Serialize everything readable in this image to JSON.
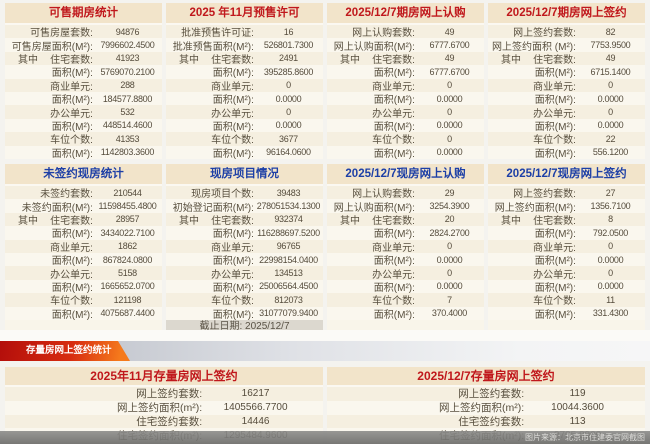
{
  "top_panels": [
    {
      "title": "可售期房统计",
      "rows": [
        {
          "prefix": "",
          "label": "可售房屋套数:",
          "value": "94876"
        },
        {
          "prefix": "",
          "label": "可售房屋面积(M²):",
          "value": "7996602.4500"
        },
        {
          "prefix": "其中",
          "label": "住宅套数:",
          "value": "41923"
        },
        {
          "prefix": "",
          "label": "面积(M²):",
          "value": "5769070.2100"
        },
        {
          "prefix": "",
          "label": "商业单元:",
          "value": "288"
        },
        {
          "prefix": "",
          "label": "面积(M²):",
          "value": "184577.8800"
        },
        {
          "prefix": "",
          "label": "办公单元:",
          "value": "532"
        },
        {
          "prefix": "",
          "label": "面积(M²):",
          "value": "448514.4600"
        },
        {
          "prefix": "",
          "label": "车位个数:",
          "value": "41353"
        },
        {
          "prefix": "",
          "label": "面积(M²):",
          "value": "1142803.3600"
        }
      ]
    },
    {
      "title": "2025 年11月预售许可",
      "rows": [
        {
          "prefix": "",
          "label": "批准预售许可证:",
          "value": "16"
        },
        {
          "prefix": "",
          "label": "批准预售面积(M²):",
          "value": "526801.7300"
        },
        {
          "prefix": "其中",
          "label": "住宅套数:",
          "value": "2491"
        },
        {
          "prefix": "",
          "label": "面积(M²):",
          "value": "395285.8600"
        },
        {
          "prefix": "",
          "label": "商业单元:",
          "value": "0"
        },
        {
          "prefix": "",
          "label": "面积(M²):",
          "value": "0.0000"
        },
        {
          "prefix": "",
          "label": "办公单元:",
          "value": "0"
        },
        {
          "prefix": "",
          "label": "面积(M²):",
          "value": "0.0000"
        },
        {
          "prefix": "",
          "label": "车位个数:",
          "value": "3677"
        },
        {
          "prefix": "",
          "label": "面积(M²):",
          "value": "96164.0600"
        }
      ]
    },
    {
      "title": "2025/12/7期房网上认购",
      "rows": [
        {
          "prefix": "",
          "label": "网上认购套数:",
          "value": "49"
        },
        {
          "prefix": "",
          "label": "网上认购面积(M²):",
          "value": "6777.6700"
        },
        {
          "prefix": "其中",
          "label": "住宅套数:",
          "value": "49"
        },
        {
          "prefix": "",
          "label": "面积(M²):",
          "value": "6777.6700"
        },
        {
          "prefix": "",
          "label": "商业单元:",
          "value": "0"
        },
        {
          "prefix": "",
          "label": "面积(M²):",
          "value": "0.0000"
        },
        {
          "prefix": "",
          "label": "办公单元:",
          "value": "0"
        },
        {
          "prefix": "",
          "label": "面积(M²):",
          "value": "0.0000"
        },
        {
          "prefix": "",
          "label": "车位个数:",
          "value": "0"
        },
        {
          "prefix": "",
          "label": "面积(M²):",
          "value": "0.0000"
        }
      ]
    },
    {
      "title": "2025/12/7期房网上签约",
      "rows": [
        {
          "prefix": "",
          "label": "网上签约套数:",
          "value": "82"
        },
        {
          "prefix": "",
          "label": "网上签约面积 (M²):",
          "value": "7753.9500"
        },
        {
          "prefix": "其中",
          "label": "住宅套数:",
          "value": "49"
        },
        {
          "prefix": "",
          "label": "面积(M²):",
          "value": "6715.1400"
        },
        {
          "prefix": "",
          "label": "商业单元:",
          "value": "0"
        },
        {
          "prefix": "",
          "label": "面积(M²):",
          "value": "0.0000"
        },
        {
          "prefix": "",
          "label": "办公单元:",
          "value": "0"
        },
        {
          "prefix": "",
          "label": "面积(M²):",
          "value": "0.0000"
        },
        {
          "prefix": "",
          "label": "车位个数:",
          "value": "22"
        },
        {
          "prefix": "",
          "label": "面积(M²):",
          "value": "556.1200"
        }
      ]
    },
    {
      "title": "未签约现房统计",
      "rows": [
        {
          "prefix": "",
          "label": "未签约套数:",
          "value": "210544"
        },
        {
          "prefix": "",
          "label": "未签约面积(M²):",
          "value": "11598455.4800"
        },
        {
          "prefix": "其中",
          "label": "住宅套数:",
          "value": "28957"
        },
        {
          "prefix": "",
          "label": "面积(M²):",
          "value": "3434022.7100"
        },
        {
          "prefix": "",
          "label": "商业单元:",
          "value": "1862"
        },
        {
          "prefix": "",
          "label": "面积(M²):",
          "value": "867824.0800"
        },
        {
          "prefix": "",
          "label": "办公单元:",
          "value": "5158"
        },
        {
          "prefix": "",
          "label": "面积(M²):",
          "value": "1665652.0700"
        },
        {
          "prefix": "",
          "label": "车位个数:",
          "value": "121198"
        },
        {
          "prefix": "",
          "label": "面积(M²):",
          "value": "4075687.4400"
        }
      ]
    },
    {
      "title": "现房项目情况",
      "footer": "截止日期: 2025/12/7",
      "rows": [
        {
          "prefix": "",
          "label": "现房项目个数:",
          "value": "39483"
        },
        {
          "prefix": "",
          "label": "初始登记面积(M²):",
          "value": "278051534.1300"
        },
        {
          "prefix": "其中",
          "label": "住宅套数:",
          "value": "932374"
        },
        {
          "prefix": "",
          "label": "面积(M²):",
          "value": "116288697.5200"
        },
        {
          "prefix": "",
          "label": "商业单元:",
          "value": "96765"
        },
        {
          "prefix": "",
          "label": "面积(M²):",
          "value": "22998154.0400"
        },
        {
          "prefix": "",
          "label": "办公单元:",
          "value": "134513"
        },
        {
          "prefix": "",
          "label": "面积(M²):",
          "value": "25006564.4500"
        },
        {
          "prefix": "",
          "label": "车位个数:",
          "value": "812073"
        },
        {
          "prefix": "",
          "label": "面积(M²):",
          "value": "31077079.9400"
        }
      ]
    },
    {
      "title": "2025/12/7现房网上认购",
      "rows": [
        {
          "prefix": "",
          "label": "网上认购套数:",
          "value": "29"
        },
        {
          "prefix": "",
          "label": "网上认购面积(M²):",
          "value": "3254.3900"
        },
        {
          "prefix": "其中",
          "label": "住宅套数:",
          "value": "20"
        },
        {
          "prefix": "",
          "label": "面积(M²):",
          "value": "2824.2700"
        },
        {
          "prefix": "",
          "label": "商业单元:",
          "value": "0"
        },
        {
          "prefix": "",
          "label": "面积(M²):",
          "value": "0.0000"
        },
        {
          "prefix": "",
          "label": "办公单元:",
          "value": "0"
        },
        {
          "prefix": "",
          "label": "面积(M²):",
          "value": "0.0000"
        },
        {
          "prefix": "",
          "label": "车位个数:",
          "value": "7"
        },
        {
          "prefix": "",
          "label": "面积(M²):",
          "value": "370.4000"
        }
      ]
    },
    {
      "title": "2025/12/7现房网上签约",
      "rows": [
        {
          "prefix": "",
          "label": "网上签约套数:",
          "value": "27"
        },
        {
          "prefix": "",
          "label": "网上签约面积(M²):",
          "value": "1356.7100"
        },
        {
          "prefix": "其中",
          "label": "住宅套数:",
          "value": "8"
        },
        {
          "prefix": "",
          "label": "面积(M²):",
          "value": "792.0500"
        },
        {
          "prefix": "",
          "label": "商业单元:",
          "value": "0"
        },
        {
          "prefix": "",
          "label": "面积(M²):",
          "value": "0.0000"
        },
        {
          "prefix": "",
          "label": "办公单元:",
          "value": "0"
        },
        {
          "prefix": "",
          "label": "面积(M²):",
          "value": "0.0000"
        },
        {
          "prefix": "",
          "label": "车位个数:",
          "value": "11"
        },
        {
          "prefix": "",
          "label": "面积(M²):",
          "value": "331.4300"
        }
      ]
    }
  ],
  "bottom_section": {
    "banner": "存量房网上签约统计",
    "panels": [
      {
        "title": "2025年11月存量房网上签约",
        "rows": [
          {
            "prefix": "",
            "label": "网上签约套数:",
            "value": "16217"
          },
          {
            "prefix": "",
            "label": "网上签约面积(m²):",
            "value": "1405566.7700"
          },
          {
            "prefix": "",
            "label": "住宅签约套数:",
            "value": "14446"
          },
          {
            "prefix": "",
            "label": "住宅签约面积(m²):",
            "value": "1295484.9600"
          }
        ]
      },
      {
        "title": "2025/12/7存量房网上签约",
        "rows": [
          {
            "prefix": "",
            "label": "网上签约套数:",
            "value": "119"
          },
          {
            "prefix": "",
            "label": "网上签约面积(m²):",
            "value": "10044.3600"
          },
          {
            "prefix": "",
            "label": "住宅签约套数:",
            "value": "113"
          },
          {
            "prefix": "",
            "label": "住宅签约面积(m²):",
            "value": "9705.8900"
          }
        ]
      }
    ]
  },
  "watermark": "图片来源：北京市住建委官网截图",
  "colors": {
    "title_red": "#c0181c",
    "title_blue": "#1d3fa6",
    "header_bg": "#f2e4ca",
    "panel_bg": "#f9f5ea",
    "banner_red": "#b30e0b",
    "banner_orange": "#f57a1c",
    "footer_bg": "#dcd8cf",
    "text": "#59503f"
  }
}
